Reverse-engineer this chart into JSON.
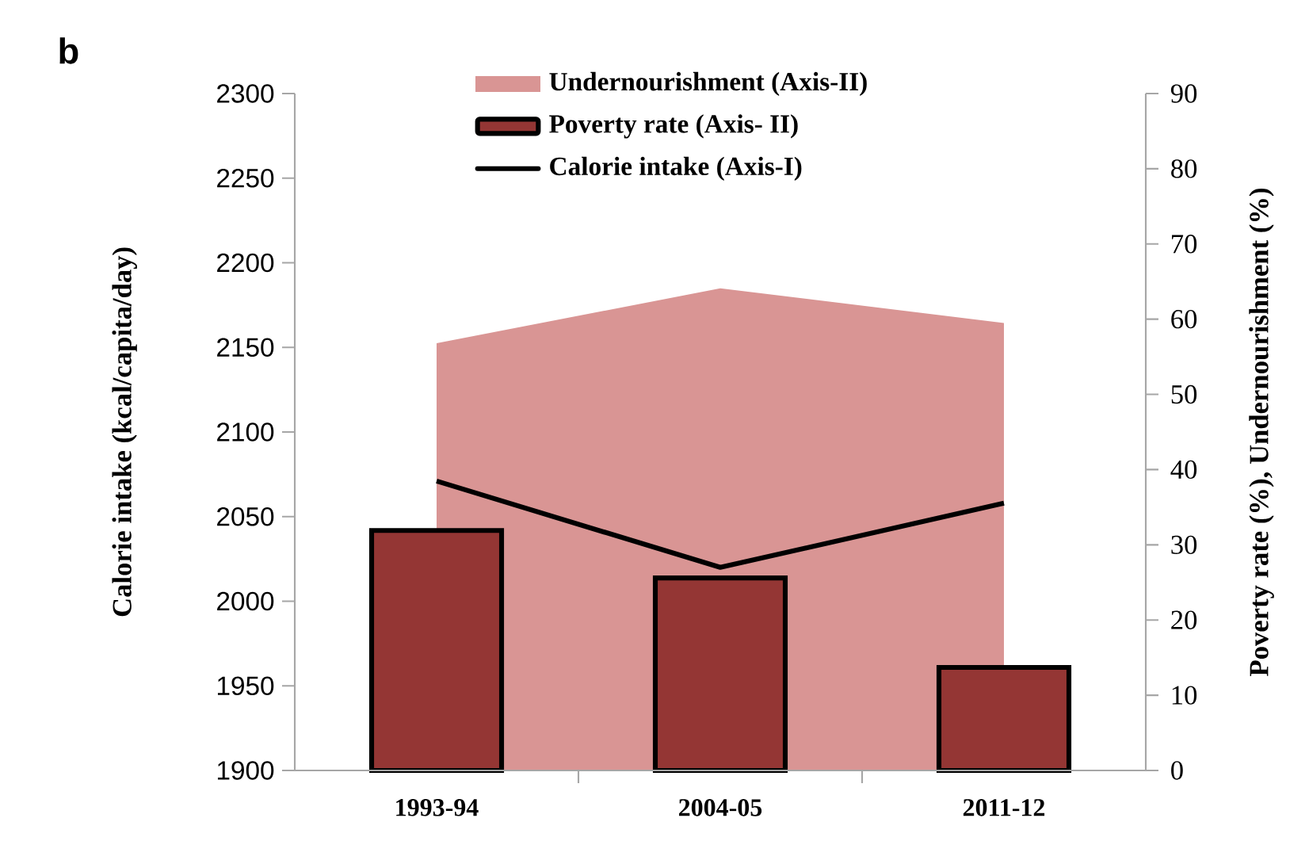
{
  "chart_data": {
    "type": "bar",
    "title": "b",
    "categories": [
      "1993-94",
      "2004-05",
      "2011-12"
    ],
    "ylabel": "Calorie intake  (kcal/capita/day)",
    "y2label": "Poverty rate (%), Undernourishment (%)",
    "ylim": [
      1900,
      2300
    ],
    "yticks": [
      1900,
      1950,
      2000,
      2050,
      2100,
      2150,
      2200,
      2250,
      2300
    ],
    "y2lim": [
      0,
      90
    ],
    "y2ticks": [
      0,
      10,
      20,
      30,
      40,
      50,
      60,
      70,
      80,
      90
    ],
    "legend": "top",
    "series": [
      {
        "name": "Undernourishment (Axis-II)",
        "type": "area",
        "axis": "y2",
        "color": "#d99594",
        "values": [
          56.8,
          64.1,
          59.5
        ]
      },
      {
        "name": "Poverty rate (Axis- II)",
        "axis": "y2",
        "color": "#943634",
        "values": [
          31.9,
          25.6,
          13.7
        ]
      },
      {
        "name": "Calorie intake (Axis-I)",
        "type": "line",
        "axis": "y",
        "color": "#000000",
        "values": [
          2071,
          2020,
          2058
        ]
      }
    ]
  }
}
